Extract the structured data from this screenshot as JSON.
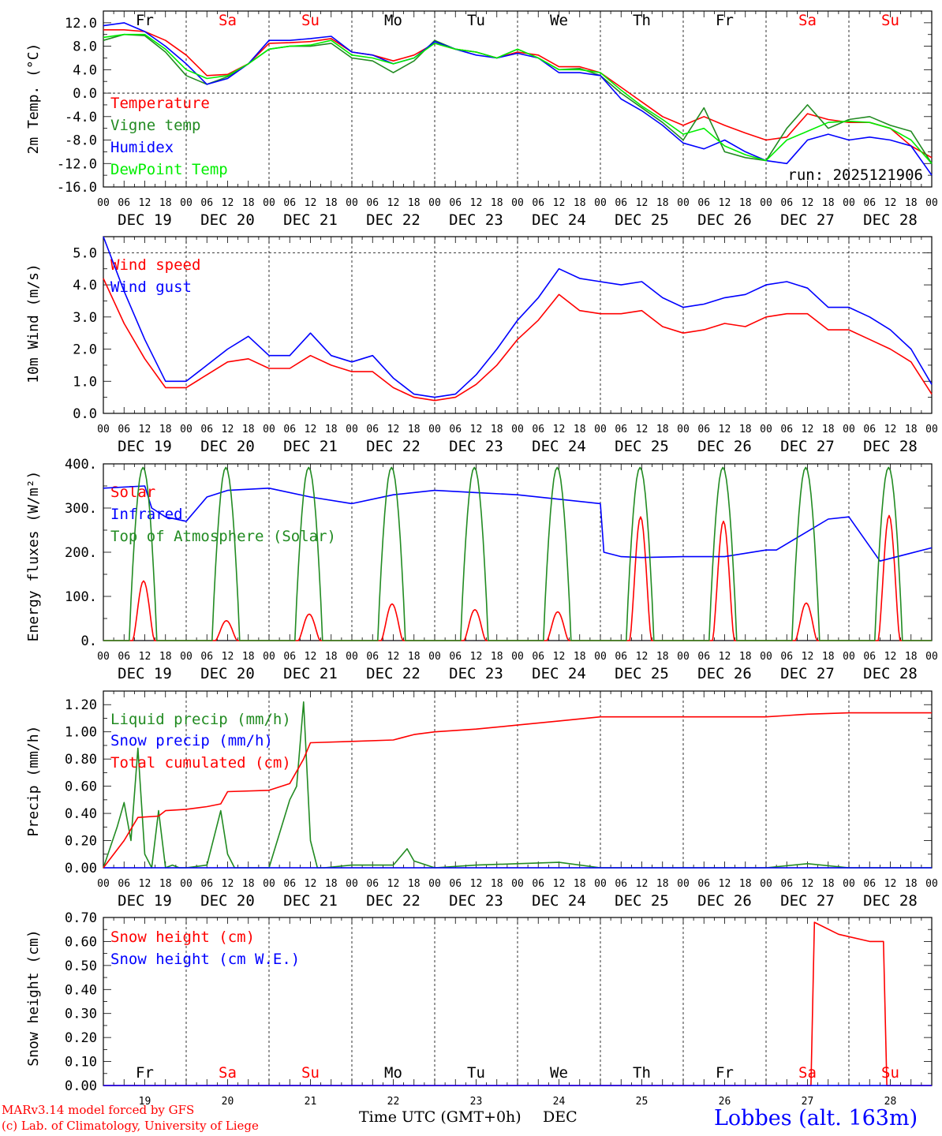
{
  "colors": {
    "red": "#ff0000",
    "green": "#228b22",
    "blue": "#0000ff",
    "light_green": "#00ee00",
    "axis": "#000000"
  },
  "days": {
    "names": [
      "Fr",
      "Sa",
      "Su",
      "Mo",
      "Tu",
      "We",
      "Th",
      "Fr",
      "Sa",
      "Su"
    ],
    "weekend": [
      false,
      true,
      true,
      false,
      false,
      false,
      false,
      false,
      true,
      true
    ],
    "dates": [
      "DEC 19",
      "DEC 20",
      "DEC 21",
      "DEC 22",
      "DEC 23",
      "DEC 24",
      "DEC 25",
      "DEC 26",
      "DEC 27",
      "DEC 28"
    ],
    "day_numbers": [
      "19",
      "20",
      "21",
      "22",
      "23",
      "24",
      "25",
      "26",
      "27",
      "28"
    ]
  },
  "hour_ticks": [
    "00",
    "06",
    "12",
    "18"
  ],
  "footer": {
    "model_line": "MARv3.14 model forced by GFS",
    "lab_line": "(c) Lab. of Climatology, University of Liege",
    "time_label": "Time UTC (GMT+0h)",
    "month_label": "DEC",
    "station": "Lobbes (alt. 163m)"
  },
  "chart_data": [
    {
      "type": "line",
      "id": "temp",
      "ylabel": "2m Temp. (°C)",
      "ylim": [
        -16,
        14
      ],
      "yticks": [
        "12.0",
        "8.0",
        "4.0",
        "0.0",
        "-4.0",
        "-8.0",
        "-12.0",
        "-16.0"
      ],
      "annotation": "run: 2025121906",
      "dashed_zero": true,
      "x_hours": [
        0,
        6,
        12,
        18,
        24,
        30,
        36,
        42,
        48,
        54,
        60,
        66,
        72,
        78,
        84,
        90,
        96,
        102,
        108,
        114,
        120,
        126,
        132,
        138,
        144,
        150,
        156,
        162,
        168,
        174,
        180,
        186,
        192,
        198,
        204,
        210,
        216,
        222,
        228,
        234,
        240
      ],
      "series": [
        {
          "name": "Temperature",
          "color": "red",
          "values": [
            10.8,
            10.8,
            10.5,
            9,
            6.5,
            3,
            3.2,
            5,
            8.5,
            8.6,
            8.8,
            9.3,
            7,
            6.5,
            5.5,
            6.5,
            8.5,
            7.5,
            7,
            6,
            7,
            6.5,
            4.5,
            4.5,
            3.5,
            1,
            -1.5,
            -4,
            -5.5,
            -4,
            -5.5,
            -6.8,
            -8,
            -7.5,
            -3.5,
            -4.5,
            -5,
            -5,
            -6,
            -9,
            -11
          ]
        },
        {
          "name": "Vigne temp",
          "color": "green",
          "values": [
            9,
            10,
            9.8,
            7,
            3,
            1.5,
            2.8,
            5,
            7.5,
            8,
            8,
            8.5,
            6,
            5.5,
            3.5,
            5.5,
            9,
            7.5,
            7,
            6,
            7.5,
            6,
            4,
            4.2,
            3,
            0,
            -2.5,
            -5,
            -8,
            -2.5,
            -10,
            -11,
            -11.5,
            -6,
            -2,
            -6,
            -4.5,
            -4,
            -5.5,
            -6.5,
            -12
          ]
        },
        {
          "name": "Humidex",
          "color": "blue",
          "values": [
            11.5,
            12,
            10.5,
            8,
            5,
            1.5,
            2.5,
            5,
            9,
            9,
            9.3,
            9.7,
            7,
            6.5,
            5,
            6,
            8.8,
            7.5,
            6.5,
            6,
            6.8,
            6,
            3.5,
            3.5,
            3,
            -1,
            -3,
            -5.5,
            -8.5,
            -9.5,
            -8,
            -10,
            -11.5,
            -12,
            -8,
            -7,
            -8,
            -7.5,
            -8,
            -9,
            -14
          ]
        },
        {
          "name": "DewPoint Temp",
          "color": "light_green",
          "values": [
            9.5,
            10,
            10,
            7.5,
            4,
            2.5,
            3,
            5,
            7.5,
            8,
            8.2,
            9,
            6.5,
            6,
            5,
            6,
            8.5,
            7.5,
            7,
            6,
            7.5,
            6,
            4,
            4,
            3.5,
            0.5,
            -2.2,
            -4.5,
            -7,
            -6,
            -9,
            -10.5,
            -11.5,
            -8,
            -6.5,
            -5,
            -4.8,
            -5,
            -6,
            -8,
            -12
          ]
        }
      ]
    },
    {
      "type": "line",
      "id": "wind",
      "ylabel": "10m Wind (m/s)",
      "ylim": [
        0,
        5.5
      ],
      "yticks": [
        "5.0",
        "4.0",
        "3.0",
        "2.0",
        "1.0",
        "0.0"
      ],
      "dashed_line": 5,
      "x_hours": [
        0,
        6,
        12,
        18,
        24,
        30,
        36,
        42,
        48,
        54,
        60,
        66,
        72,
        78,
        84,
        90,
        96,
        102,
        108,
        114,
        120,
        126,
        132,
        138,
        144,
        150,
        156,
        162,
        168,
        174,
        180,
        186,
        192,
        198,
        204,
        210,
        216,
        222,
        228,
        234,
        240
      ],
      "series": [
        {
          "name": "Wind speed",
          "color": "red",
          "values": [
            4.2,
            2.8,
            1.7,
            0.8,
            0.8,
            1.2,
            1.6,
            1.7,
            1.4,
            1.4,
            1.8,
            1.5,
            1.3,
            1.3,
            0.8,
            0.5,
            0.4,
            0.5,
            0.9,
            1.5,
            2.3,
            2.9,
            3.7,
            3.2,
            3.1,
            3.1,
            3.2,
            2.7,
            2.5,
            2.6,
            2.8,
            2.7,
            3,
            3.1,
            3.1,
            2.6,
            2.6,
            2.3,
            2,
            1.6,
            0.6
          ]
        },
        {
          "name": "Wind gust",
          "color": "blue",
          "values": [
            5.5,
            3.8,
            2.3,
            1,
            1,
            1.5,
            2,
            2.4,
            1.8,
            1.8,
            2.5,
            1.8,
            1.6,
            1.8,
            1.1,
            0.6,
            0.5,
            0.6,
            1.2,
            2,
            2.9,
            3.6,
            4.5,
            4.2,
            4.1,
            4,
            4.1,
            3.6,
            3.3,
            3.4,
            3.6,
            3.7,
            4,
            4.1,
            3.9,
            3.3,
            3.3,
            3,
            2.6,
            2,
            0.9
          ]
        }
      ]
    },
    {
      "type": "line",
      "id": "energy",
      "ylabel": "Energy fluxes (W/m²)",
      "ylim": [
        0,
        400
      ],
      "yticks": [
        "400.",
        "300.",
        "200.",
        "100.",
        "0."
      ],
      "series": [
        {
          "name": "Solar",
          "color": "red",
          "day_peaks": [
            135,
            45,
            60,
            83,
            70,
            65,
            280,
            270,
            85,
            283
          ]
        },
        {
          "name": "Infrared",
          "color": "blue",
          "x_hours": [
            0,
            12,
            14,
            18,
            24,
            30,
            36,
            48,
            60,
            72,
            84,
            96,
            108,
            120,
            132,
            144,
            145,
            150,
            156,
            168,
            180,
            192,
            195,
            210,
            216,
            225,
            240
          ],
          "values": [
            345,
            350,
            300,
            280,
            270,
            325,
            340,
            345,
            325,
            310,
            330,
            340,
            335,
            330,
            320,
            310,
            200,
            190,
            188,
            190,
            190,
            205,
            205,
            275,
            280,
            180,
            210
          ]
        },
        {
          "name": "Top of Atmosphere (Solar)",
          "color": "green",
          "day_peaks": [
            392,
            392,
            392,
            392,
            392,
            392,
            392,
            392,
            392,
            392
          ]
        }
      ]
    },
    {
      "type": "line",
      "id": "precip",
      "ylabel": "Precip (mm/h)",
      "ylim": [
        0,
        1.3
      ],
      "yticks": [
        "1.20",
        "1.00",
        "0.80",
        "0.60",
        "0.40",
        "0.20",
        "0.00"
      ],
      "series": [
        {
          "name": "Liquid precip (mm/h)",
          "color": "green",
          "x_hours": [
            0,
            4,
            6,
            8,
            10,
            12,
            14,
            16,
            18,
            20,
            22,
            24,
            30,
            34,
            36,
            38,
            40,
            48,
            54,
            56,
            58,
            60,
            62,
            64,
            72,
            84,
            88,
            90,
            96,
            108,
            120,
            132,
            144,
            168,
            192,
            204,
            216,
            240
          ],
          "values": [
            0,
            0.3,
            0.48,
            0.2,
            0.88,
            0.1,
            0,
            0.42,
            0,
            0.02,
            0,
            0,
            0.02,
            0.42,
            0.1,
            0,
            0,
            0,
            0.5,
            0.6,
            1.22,
            0.2,
            0,
            0,
            0.02,
            0.02,
            0.14,
            0.05,
            0,
            0.02,
            0.03,
            0.04,
            0,
            0,
            0,
            0.03,
            0,
            0
          ]
        },
        {
          "name": "Snow precip (mm/h)",
          "color": "blue",
          "x_hours": [
            0,
            240
          ],
          "values": [
            0,
            0
          ]
        },
        {
          "name": "Total cumulated (cm)",
          "color": "red",
          "x_hours": [
            0,
            6,
            10,
            16,
            18,
            24,
            30,
            34,
            36,
            48,
            54,
            58,
            60,
            72,
            84,
            90,
            96,
            108,
            120,
            132,
            144,
            168,
            192,
            198,
            204,
            216,
            240
          ],
          "values": [
            0,
            0.2,
            0.37,
            0.38,
            0.42,
            0.43,
            0.45,
            0.47,
            0.56,
            0.57,
            0.62,
            0.8,
            0.92,
            0.93,
            0.94,
            0.98,
            1,
            1.02,
            1.05,
            1.08,
            1.11,
            1.11,
            1.11,
            1.12,
            1.13,
            1.14,
            1.14
          ]
        }
      ]
    },
    {
      "type": "line",
      "id": "snow",
      "ylabel": "Snow height (cm)",
      "ylim": [
        0,
        0.7
      ],
      "yticks": [
        "0.70",
        "0.60",
        "0.50",
        "0.40",
        "0.30",
        "0.20",
        "0.10",
        "0.00"
      ],
      "series": [
        {
          "name": "Snow height (cm)",
          "color": "red",
          "x_hours": [
            0,
            205,
            206,
            213,
            222,
            226,
            227,
            240
          ],
          "values": [
            0,
            0,
            0.68,
            0.63,
            0.6,
            0.6,
            0,
            0
          ]
        },
        {
          "name": "Snow height (cm W.E.)",
          "color": "blue",
          "x_hours": [
            0,
            240
          ],
          "values": [
            0,
            0
          ]
        }
      ]
    }
  ]
}
